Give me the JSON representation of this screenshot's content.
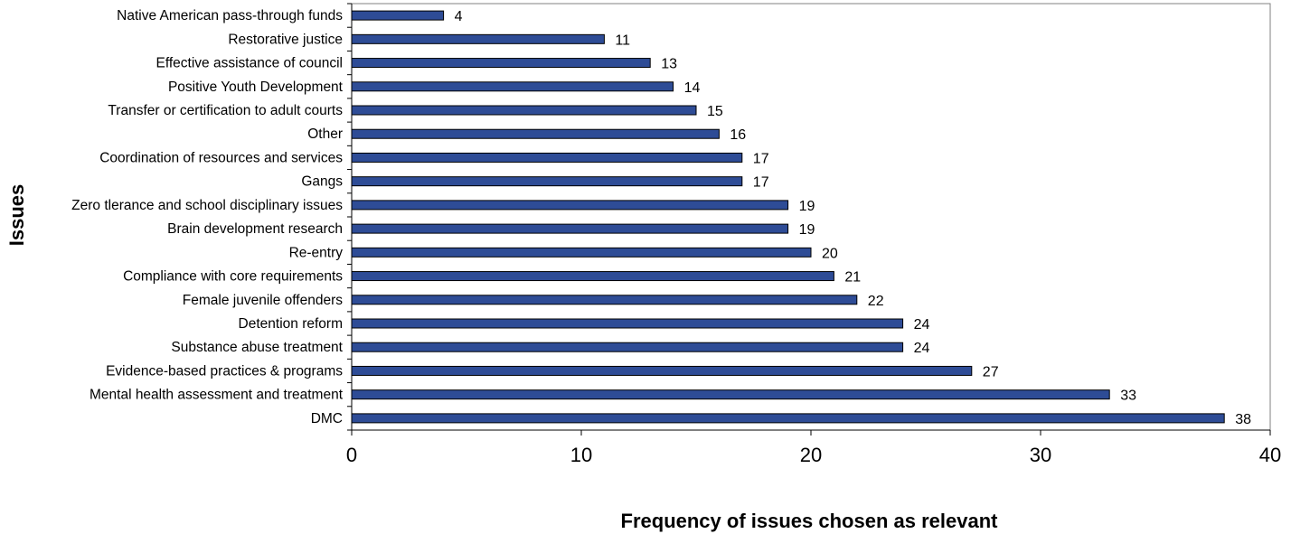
{
  "chart_data": {
    "type": "bar",
    "orientation": "horizontal",
    "title": "",
    "xlabel": "Frequency of issues chosen as relevant",
    "ylabel": "Issues",
    "xlim": [
      0,
      40
    ],
    "xticks": [
      0,
      10,
      20,
      30,
      40
    ],
    "grid": false,
    "legend": "none",
    "bar_color": "#2E4C96",
    "categories": [
      "Native American pass-through funds",
      "Restorative justice",
      "Effective assistance of council",
      "Positive Youth Development",
      "Transfer or certification to adult courts",
      "Other",
      "Coordination of resources and services",
      "Gangs",
      "Zero tlerance and school disciplinary issues",
      "Brain development research",
      "Re-entry",
      "Compliance with core requirements",
      "Female juvenile offenders",
      "Detention reform",
      "Substance abuse treatment",
      "Evidence-based practices & programs",
      "Mental health assessment and treatment",
      "DMC"
    ],
    "values": [
      4,
      11,
      13,
      14,
      15,
      16,
      17,
      17,
      19,
      19,
      20,
      21,
      22,
      24,
      24,
      27,
      33,
      38
    ]
  }
}
